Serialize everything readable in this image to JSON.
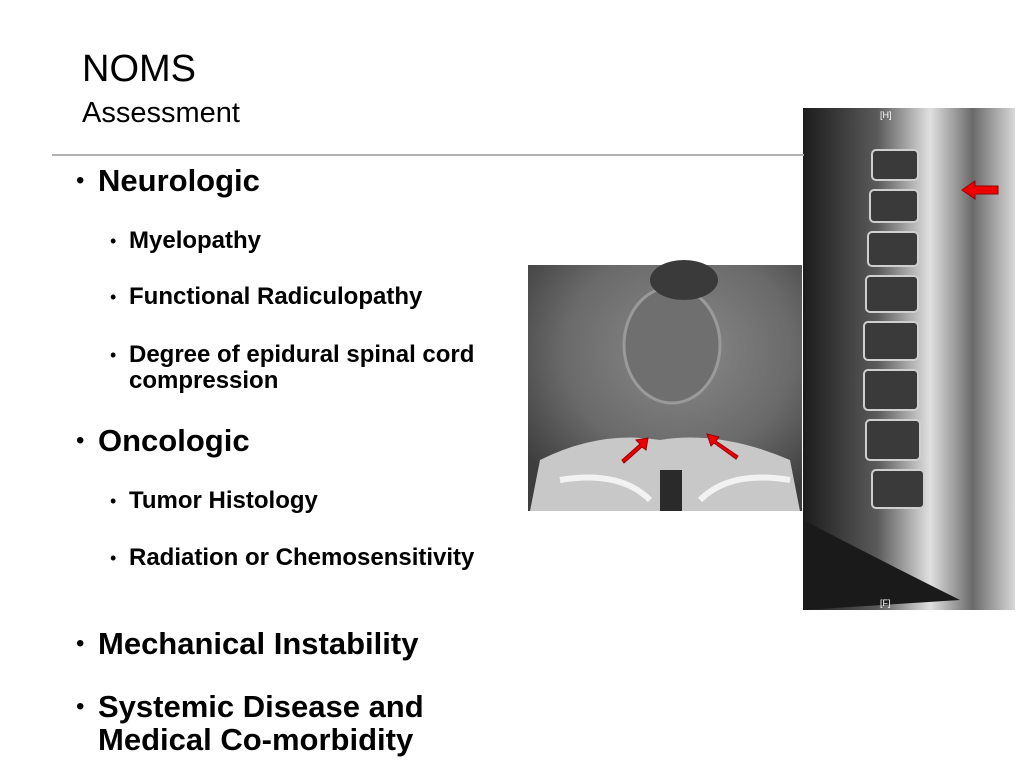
{
  "header": {
    "title": "NOMS",
    "subtitle": "Assessment"
  },
  "bullets": [
    {
      "text": "Neurologic",
      "items": [
        "Myelopathy",
        "Functional Radiculopathy",
        "Degree of epidural spinal cord compression"
      ]
    },
    {
      "text": "Oncologic",
      "items": [
        "Tumor Histology",
        "Radiation or Chemosensitivity"
      ]
    },
    {
      "text": "Mechanical Instability",
      "items": []
    },
    {
      "text": "Systemic Disease and Medical Co-morbidity",
      "items": []
    }
  ],
  "image_labels": [
    "[H]",
    "[F]"
  ]
}
